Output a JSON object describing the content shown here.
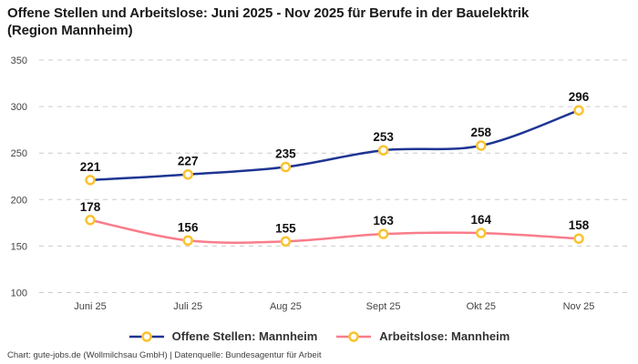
{
  "header": {
    "title_lines": [
      "Offene Stellen und Arbeitslose: Juni 2025 - Nov 2025 für Berufe in der Bauelektrik",
      "(Region Mannheim)"
    ]
  },
  "chart_data": {
    "type": "line",
    "title": "Offene Stellen und Arbeitslose: Juni 2025 - Nov 2025 für Berufe in der Bauelektrik (Region Mannheim)",
    "categories": [
      "Juni 25",
      "Juli 25",
      "Aug 25",
      "Sept 25",
      "Okt 25",
      "Nov 25"
    ],
    "series": [
      {
        "name": "Offene Stellen: Mannheim",
        "values": [
          221,
          227,
          235,
          253,
          258,
          296
        ],
        "color": "#1e3593"
      },
      {
        "name": "Arbeitslose: Mannheim",
        "values": [
          178,
          156,
          155,
          163,
          164,
          158
        ],
        "color": "#f97d8b"
      }
    ],
    "xlabel": "",
    "ylabel": "",
    "ylim": [
      100,
      350
    ],
    "yticks": [
      100,
      150,
      200,
      250,
      300,
      350
    ],
    "grid": "horizontal-dashed",
    "legend_position": "bottom",
    "marker_ring_color": "#f9c32f",
    "marker_fill_color": "#ffffff",
    "gridline_color": "#cccccc",
    "tick_label_color": "#444444",
    "data_label_color": "#111111"
  },
  "footer": {
    "credit": "Chart: gute-jobs.de (Wollmilchsau GmbH) | Datenquelle: Bundesagentur für Arbeit"
  }
}
